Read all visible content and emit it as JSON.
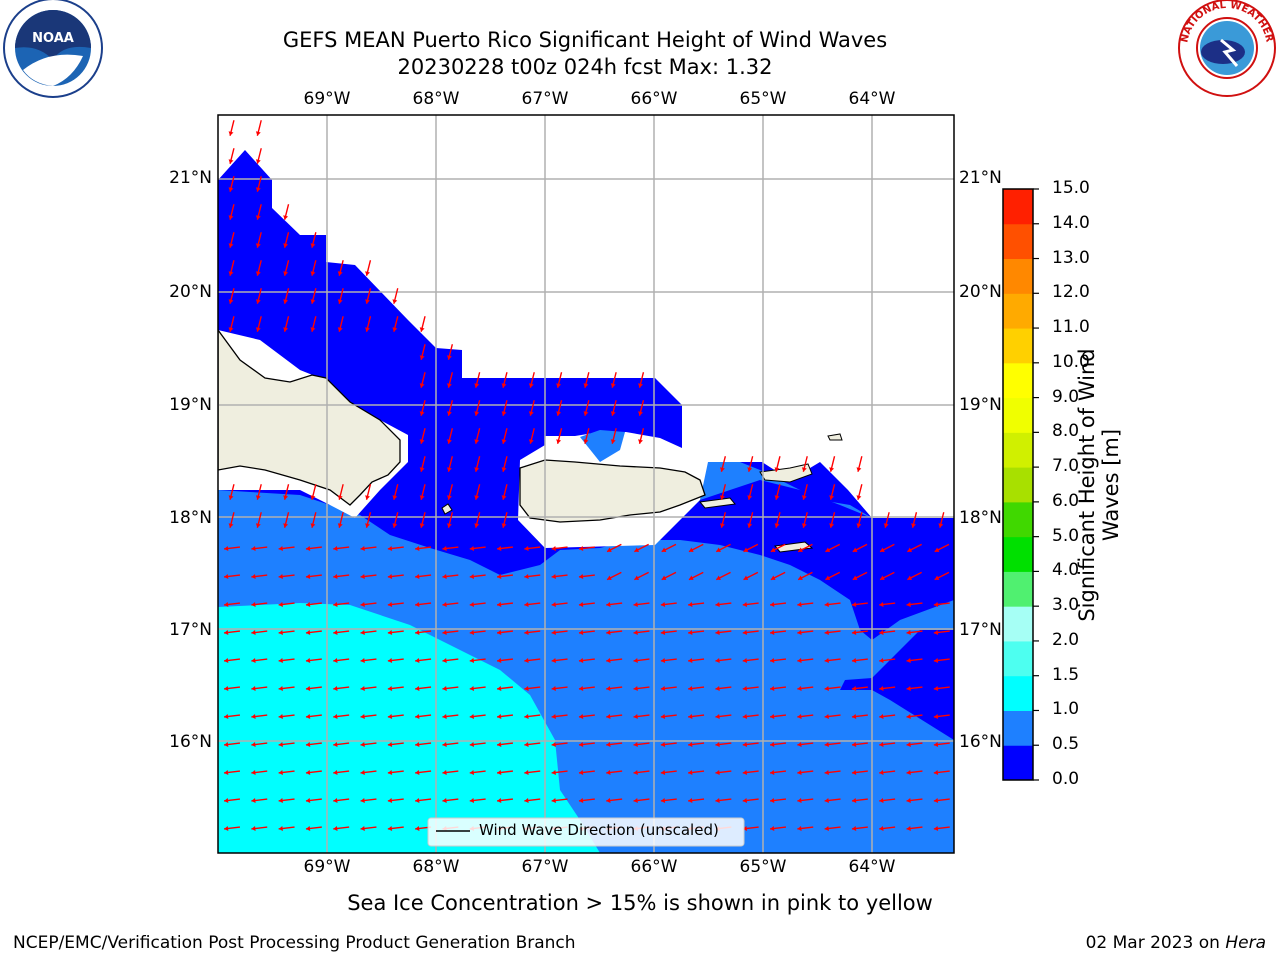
{
  "header": {
    "title_line1": "GEFS MEAN Puerto Rico Significant Height of Wind Waves",
    "title_line2": "20230228 t00z 024h fcst   Max: 1.32",
    "left_logo": "noaa-logo",
    "right_logo": "national-weather-service-logo",
    "right_logo_text": "NATIONAL WEATHER SERVICE"
  },
  "map": {
    "lon_ticks": [
      "69°W",
      "68°W",
      "67°W",
      "66°W",
      "65°W",
      "64°W"
    ],
    "lat_ticks": [
      "21°N",
      "20°N",
      "19°N",
      "18°N",
      "17°N",
      "16°N"
    ],
    "extent": {
      "lon_min": -70.0,
      "lon_max": -63.25,
      "lat_min": 15.0,
      "lat_max": 21.55
    },
    "arrow_color": "#ff0000",
    "land_color": "#efeedf",
    "grid": true,
    "legend_label": "Wind Wave Direction (unscaled)"
  },
  "colorbar": {
    "label": "Significant Height of Wind Waves [m]",
    "label_line1": "Significant Height of Wind",
    "label_line2": "Waves [m]",
    "levels": [
      "0.0",
      "0.5",
      "1.0",
      "1.5",
      "2.0",
      "3.0",
      "4.0",
      "5.0",
      "6.0",
      "7.0",
      "8.0",
      "9.0",
      "10.0",
      "11.0",
      "12.0",
      "13.0",
      "14.0",
      "15.0"
    ],
    "colors": [
      "#0000ff",
      "#1e80ff",
      "#00ffff",
      "#4dfff0",
      "#a6fff5",
      "#50f070",
      "#00e000",
      "#40d800",
      "#a8e000",
      "#d0f000",
      "#f0ff00",
      "#ffff00",
      "#ffd000",
      "#ffaa00",
      "#ff8800",
      "#ff5000",
      "#ff2000"
    ]
  },
  "chart_data": {
    "type": "heatmap",
    "title": "GEFS MEAN Puerto Rico Significant Height of Wind Waves",
    "subtitle": "20230228 t00z 024h fcst   Max: 1.32",
    "max_value": 1.32,
    "regions": [
      {
        "range_m": "0.0-0.5",
        "area": "north of 17.5°N and east of 64°W"
      },
      {
        "range_m": "0.5-1.0",
        "area": "central Caribbean band 16-18°N"
      },
      {
        "range_m": "1.0-1.5",
        "area": "southwest, south of 17.2°N and west of 67°W"
      }
    ],
    "arrow_direction": "westward (south of Puerto Rico), southward (north of Puerto Rico)"
  },
  "notes": {
    "sea_ice": "Sea Ice Concentration > 15% is shown in pink to yellow"
  },
  "footer": {
    "left": "NCEP/EMC/Verification Post Processing Product Generation Branch",
    "date": "02 Mar 2023 on ",
    "machine": "Hera"
  }
}
